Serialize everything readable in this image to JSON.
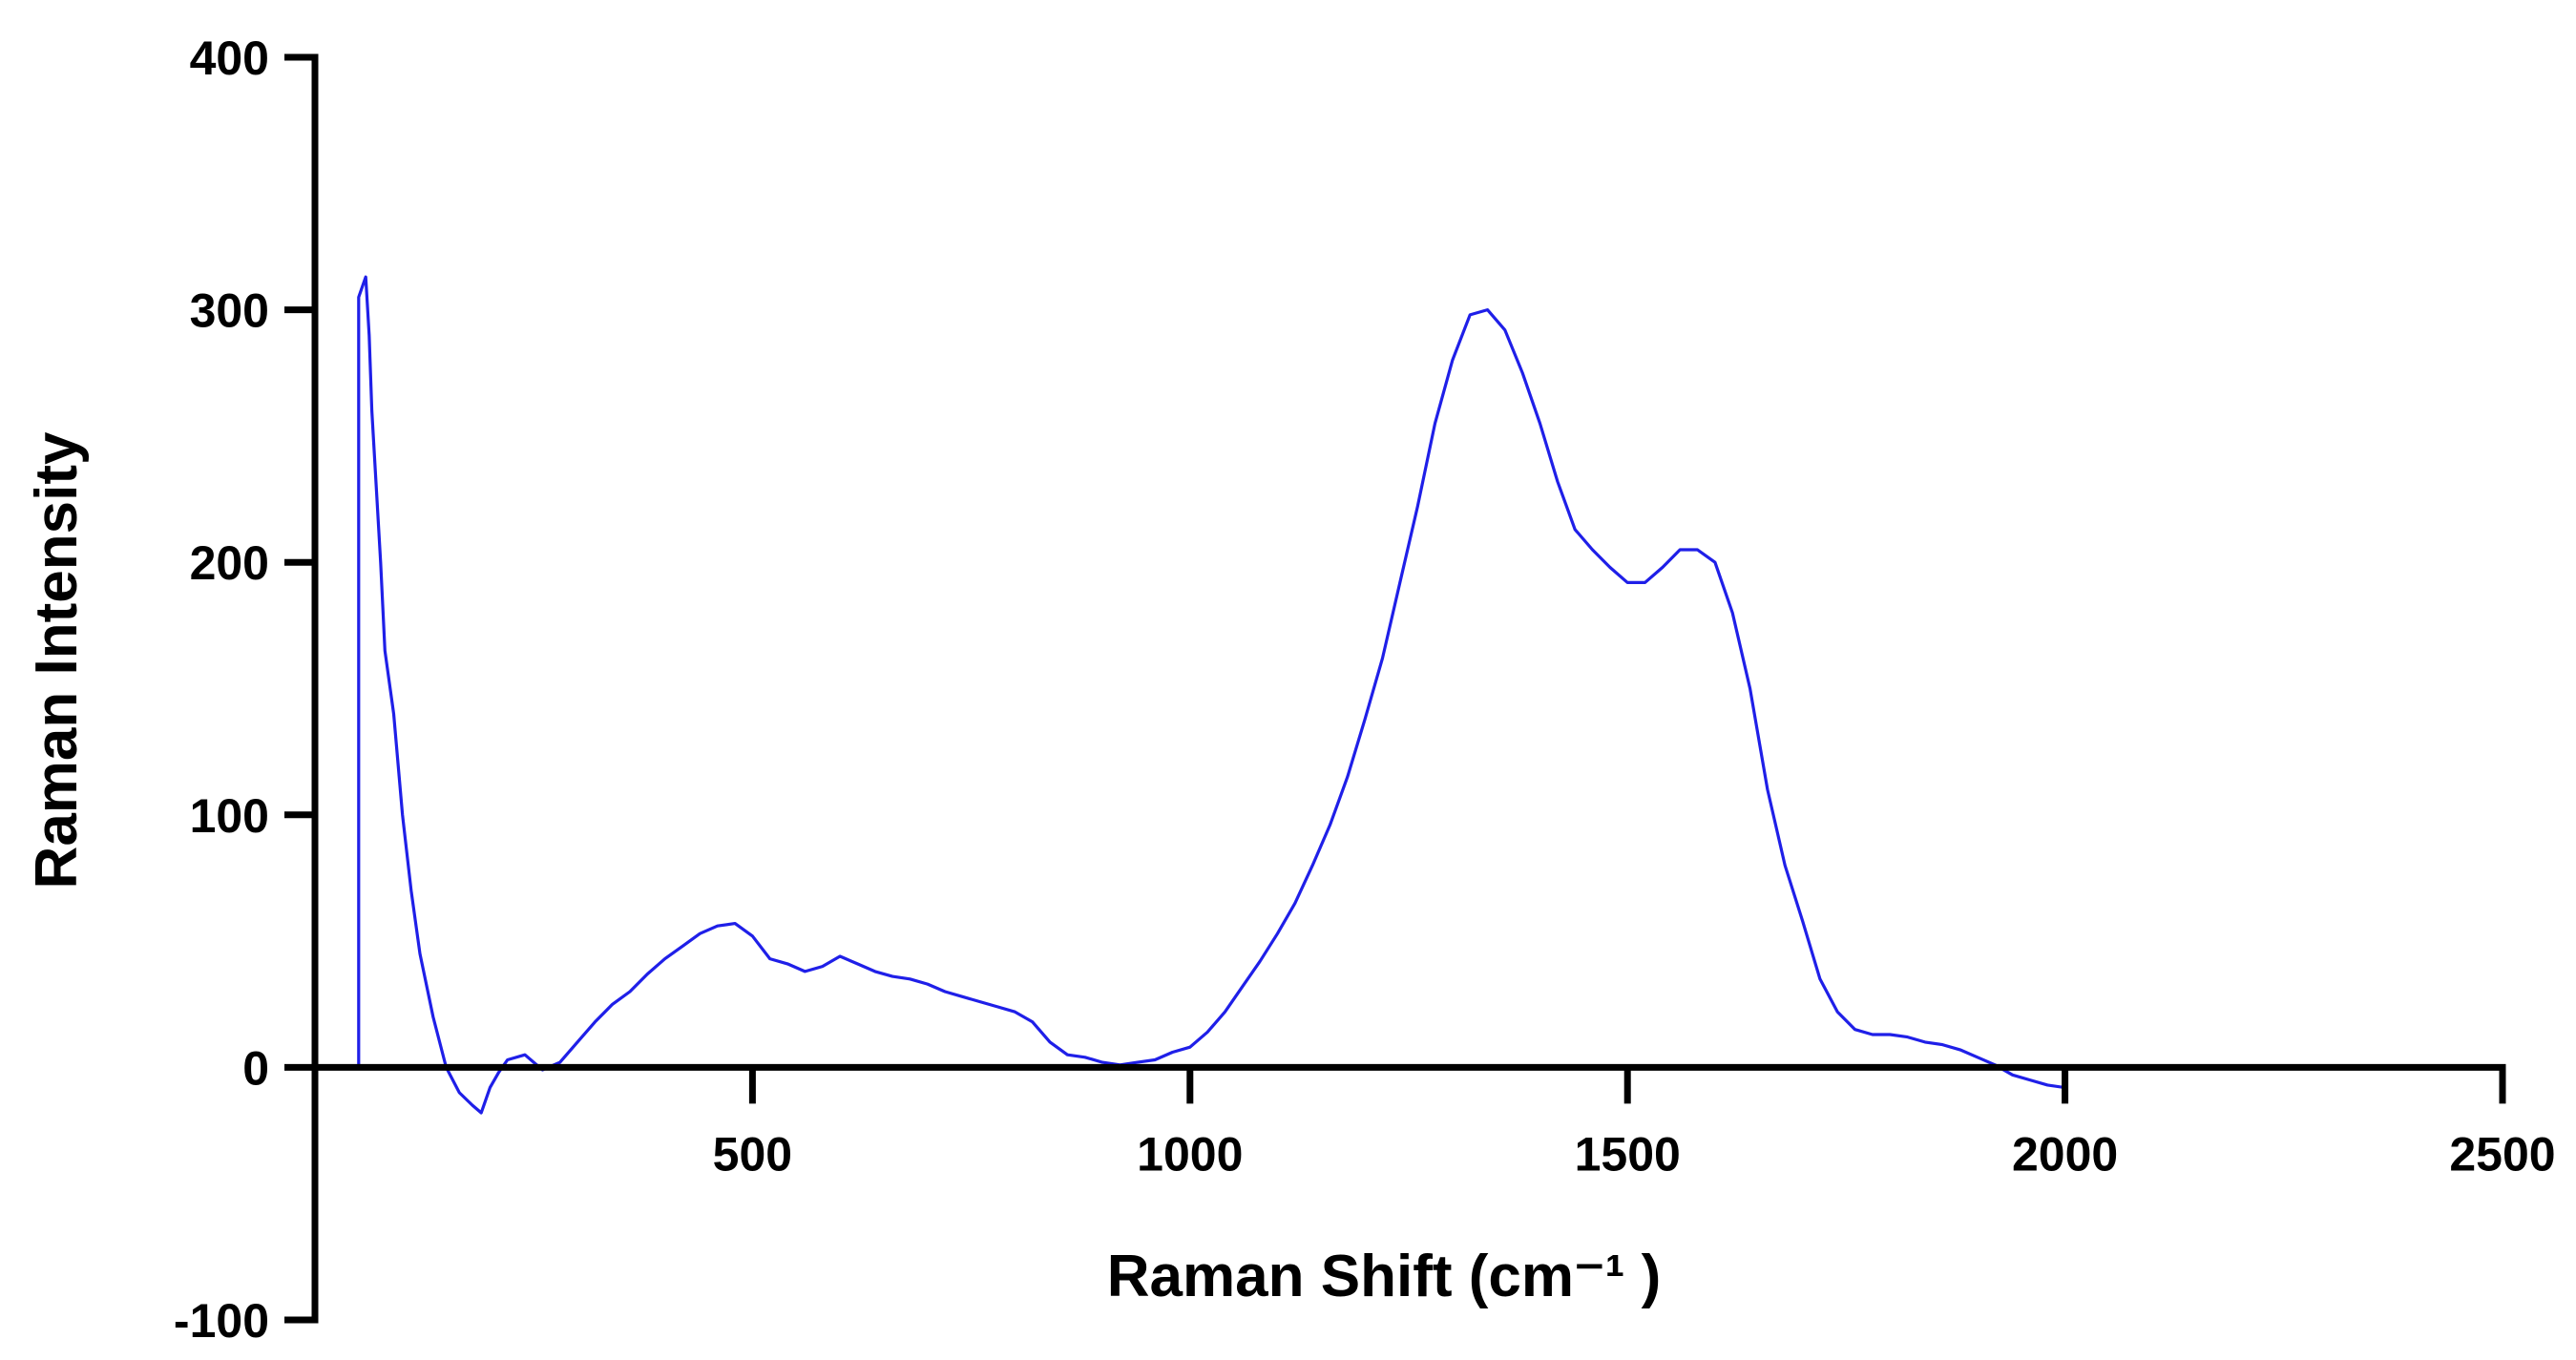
{
  "chart_data": {
    "type": "line",
    "title": "",
    "xlabel": "Raman Shift (cm⁻¹ )",
    "ylabel": "Raman Intensity",
    "xlim": [
      0,
      2500
    ],
    "ylim": [
      -100,
      400
    ],
    "x_ticks": [
      500,
      1000,
      1500,
      2000,
      2500
    ],
    "x_tick_labels": [
      "500",
      "1000",
      "1500",
      "2000",
      "2500"
    ],
    "y_ticks": [
      -100,
      0,
      100,
      200,
      300,
      400
    ],
    "y_tick_labels": [
      "-100",
      "0",
      "100",
      "200",
      "300",
      "400"
    ],
    "grid": false,
    "legend": "none",
    "colors": {
      "series": "#1f1fe8",
      "axes": "#000000"
    },
    "series": [
      {
        "x": [
          50,
          50,
          55,
          58,
          62,
          65,
          70,
          75,
          80,
          90,
          100,
          110,
          120,
          135,
          150,
          165,
          180,
          190,
          200,
          210,
          220,
          240,
          260,
          280,
          300,
          320,
          340,
          360,
          380,
          400,
          420,
          440,
          460,
          480,
          500,
          520,
          540,
          560,
          580,
          600,
          620,
          640,
          660,
          680,
          700,
          720,
          740,
          760,
          780,
          800,
          820,
          840,
          860,
          880,
          900,
          920,
          940,
          960,
          980,
          1000,
          1020,
          1040,
          1060,
          1080,
          1100,
          1120,
          1140,
          1160,
          1180,
          1200,
          1220,
          1240,
          1260,
          1280,
          1300,
          1320,
          1340,
          1360,
          1380,
          1400,
          1420,
          1440,
          1460,
          1480,
          1500,
          1520,
          1540,
          1560,
          1580,
          1600,
          1620,
          1640,
          1660,
          1680,
          1700,
          1720,
          1740,
          1760,
          1780,
          1800,
          1820,
          1840,
          1860,
          1880,
          1900,
          1920,
          1940,
          1960,
          1980,
          2000
        ],
        "y": [
          0,
          305,
          310,
          313,
          290,
          260,
          230,
          200,
          165,
          140,
          100,
          70,
          45,
          20,
          0,
          -10,
          -15,
          -18,
          -8,
          -2,
          3,
          5,
          -1,
          2,
          10,
          18,
          25,
          30,
          37,
          43,
          48,
          53,
          56,
          57,
          52,
          43,
          41,
          38,
          40,
          44,
          41,
          38,
          36,
          35,
          33,
          30,
          28,
          26,
          24,
          22,
          18,
          10,
          5,
          4,
          2,
          1,
          2,
          3,
          6,
          8,
          14,
          22,
          32,
          42,
          53,
          65,
          80,
          96,
          115,
          138,
          162,
          192,
          222,
          255,
          280,
          298,
          300,
          292,
          275,
          255,
          232,
          213,
          205,
          198,
          192,
          192,
          198,
          205,
          205,
          200,
          180,
          150,
          110,
          80,
          58,
          35,
          22,
          15,
          13,
          13,
          12,
          10,
          9,
          7,
          4,
          1,
          -3,
          -5,
          -7,
          -8
        ]
      }
    ]
  }
}
